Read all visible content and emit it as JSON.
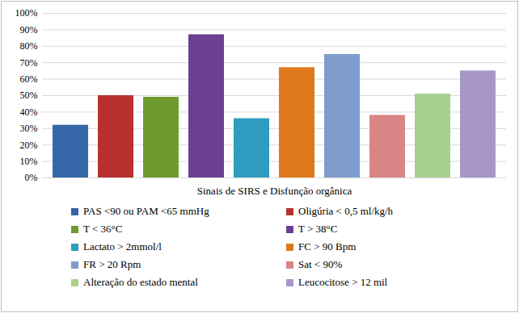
{
  "chart_data": {
    "type": "bar",
    "x_label": "Sinais de SIRS e Disfunção orgânica",
    "categories": [
      "PAS <90 ou PAM <65 mmHg",
      "Oligúria < 0,5 ml/kg/h",
      "T < 36°C",
      "T > 38°C",
      "Lactato > 2mmol/l",
      "FC > 90 Bpm",
      "FR > 20 Rpm",
      "Sat < 90%",
      "Alteração do estado mental",
      "Leucocitose > 12 mil"
    ],
    "values": [
      32,
      50,
      49,
      87,
      36,
      67,
      75,
      38,
      51,
      65
    ],
    "colors": [
      "#3566a8",
      "#b8312f",
      "#6e9a2e",
      "#6b3f91",
      "#2e9cc0",
      "#e0791b",
      "#7f9dcc",
      "#d98585",
      "#a9d18e",
      "#a797c9"
    ],
    "ylim": [
      0,
      100
    ],
    "yticks": [
      {
        "value": 0,
        "label": "0%"
      },
      {
        "value": 10,
        "label": "10%"
      },
      {
        "value": 20,
        "label": "20%"
      },
      {
        "value": 30,
        "label": "30%"
      },
      {
        "value": 40,
        "label": "40%"
      },
      {
        "value": 50,
        "label": "50%"
      },
      {
        "value": 60,
        "label": "60%"
      },
      {
        "value": 70,
        "label": "70%"
      },
      {
        "value": 80,
        "label": "80%"
      },
      {
        "value": 90,
        "label": "90%"
      },
      {
        "value": 100,
        "label": "100%"
      }
    ],
    "grid": true,
    "legend": "bottom",
    "tick_labels": "y"
  }
}
